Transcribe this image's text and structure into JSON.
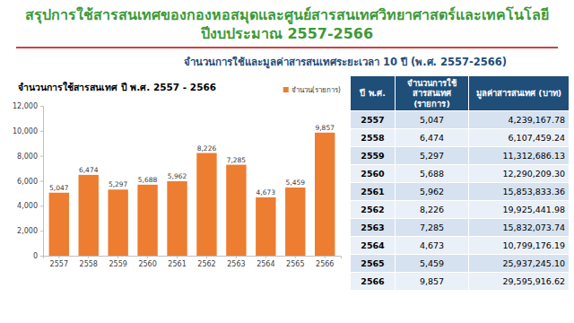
{
  "header": {
    "title": [
      "สรุปการใช้สารสนเทศของกองหอสมุดและศูนย์สารสนเทศวิทยาศาสตร์และเทคโนโลยี",
      "ปีงบประมาณ 2557-2566"
    ],
    "subtitle": "จำนวนการใช้และมูลค่าสารสนเทศระยะเวลา 10 ปี (พ.ศ. 2557-2566)"
  },
  "chart_data": {
    "type": "bar",
    "title": "จำนวนการใช้สารสนเทศ ปี พ.ศ. 2557 - 2566",
    "categories": [
      "2557",
      "2558",
      "2559",
      "2560",
      "2561",
      "2562",
      "2563",
      "2564",
      "2565",
      "2566"
    ],
    "series": [
      {
        "name": "จำนวน(รายการ)",
        "color": "#ed7d31",
        "values": [
          5047,
          6474,
          5297,
          5688,
          5962,
          8226,
          7285,
          4673,
          5459,
          9857
        ],
        "value_labels": [
          "5,047",
          "6,474",
          "5,297",
          "5,688",
          "5,962",
          "8,226",
          "7,285",
          "4,673",
          "5,459",
          "9,857"
        ]
      }
    ],
    "ylim": [
      0,
      12000
    ],
    "yticks": [
      0,
      {
        "value": 2000,
        "label": "2,000"
      },
      {
        "value": 4000,
        "label": "4,000"
      },
      {
        "value": 6000,
        "label": "6,000"
      },
      {
        "value": 8000,
        "label": "8,000"
      },
      {
        "value": 10000,
        "label": "10,000"
      },
      {
        "value": 12000,
        "label": "12,000"
      }
    ],
    "grid": false,
    "data_labels": true,
    "legend": "top-right"
  },
  "table": {
    "header": [
      "ปี พ.ศ.",
      "จำนวนการใช้สารสนเทศ (รายการ)",
      "มูลค่าสารสนเทศ (บาท)"
    ],
    "rows": [
      [
        "2557",
        "5,047",
        "4,239,167.78"
      ],
      [
        "2558",
        "6,474",
        "6,107,459.24"
      ],
      [
        "2559",
        "5,297",
        "11,312,686.13"
      ],
      [
        "2560",
        "5,688",
        "12,290,209.30"
      ],
      [
        "2561",
        "5,962",
        "15,853,833.36"
      ],
      [
        "2562",
        "8,226",
        "19,925,441.98"
      ],
      [
        "2563",
        "7,285",
        "15,832,073.74"
      ],
      [
        "2564",
        "4,673",
        "10,799,176.19"
      ],
      [
        "2565",
        "5,459",
        "25,937,245.10"
      ],
      [
        "2566",
        "9,857",
        "29,595,916.62"
      ]
    ]
  }
}
